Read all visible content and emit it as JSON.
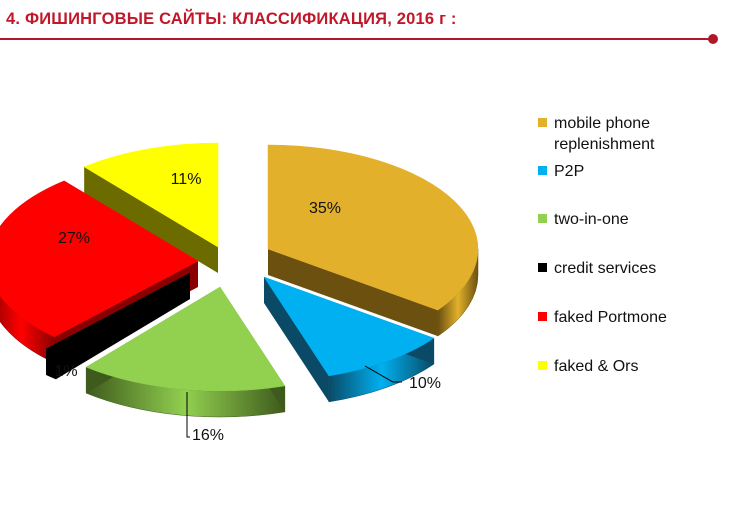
{
  "header": {
    "title": "4. ФИШИНГОВЫЕ САЙТЫ: КЛАССИФИКАЦИЯ, 2016 г :"
  },
  "chart_data": {
    "type": "pie",
    "style": "3d-exploded",
    "legend_position": "right",
    "slices": [
      {
        "label": "mobile phone\nreplenishment",
        "value": 35,
        "display": "35%",
        "color": "#e2b02b",
        "dark": "#6b5010"
      },
      {
        "label": "P2P",
        "value": 10,
        "display": "10%",
        "color": "#00b0f0",
        "dark": "#0a4a66"
      },
      {
        "label": "two-in-one",
        "value": 16,
        "display": "16%",
        "color": "#92d050",
        "dark": "#3e5a1c"
      },
      {
        "label": "credit services",
        "value": 1,
        "display": "1%",
        "color": "#000000",
        "dark": "#000000"
      },
      {
        "label": "faked Portmone",
        "value": 27,
        "display": "27%",
        "color": "#ff0000",
        "dark": "#8a0000"
      },
      {
        "label": "faked & Ors",
        "value": 11,
        "display": "11%",
        "color": "#ffff00",
        "dark": "#6b6b00"
      }
    ]
  }
}
